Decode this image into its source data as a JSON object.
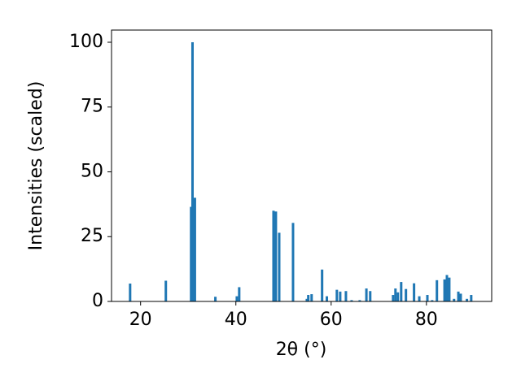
{
  "chart_data": {
    "type": "bar",
    "x_label": "2θ (°)",
    "y_label": "Intensities (scaled)",
    "color": "#1f77b4",
    "x": [
      17.8,
      25.3,
      30.6,
      30.9,
      31.4,
      35.7,
      40.2,
      40.7,
      47.9,
      48.4,
      49.1,
      52.0,
      54.9,
      55.2,
      55.9,
      58.1,
      59.1,
      61.2,
      61.9,
      63.1,
      64.3,
      66.0,
      67.4,
      68.2,
      73.0,
      73.5,
      74.0,
      74.7,
      75.7,
      77.4,
      78.5,
      80.2,
      81.2,
      82.2,
      83.8,
      84.3,
      84.8,
      85.8,
      86.7,
      87.2,
      88.5,
      89.4
    ],
    "values": [
      6.9,
      8,
      36.5,
      100,
      40,
      1.8,
      2,
      5.5,
      35,
      34.7,
      26.5,
      30.3,
      1,
      2.5,
      2.8,
      12.3,
      2,
      4.5,
      3.8,
      4,
      0.5,
      0.5,
      5,
      4,
      2.5,
      5,
      3.5,
      7.5,
      4.8,
      7,
      2,
      2.5,
      0.5,
      8.2,
      8.5,
      10.2,
      9.2,
      1,
      3.8,
      3,
      1,
      2.5
    ],
    "xlim": [
      13.9,
      93.7
    ],
    "ylim": [
      0,
      104.7
    ],
    "xticks": [
      20,
      40,
      60,
      80
    ],
    "yticks": [
      0,
      25,
      50,
      75,
      100
    ]
  }
}
